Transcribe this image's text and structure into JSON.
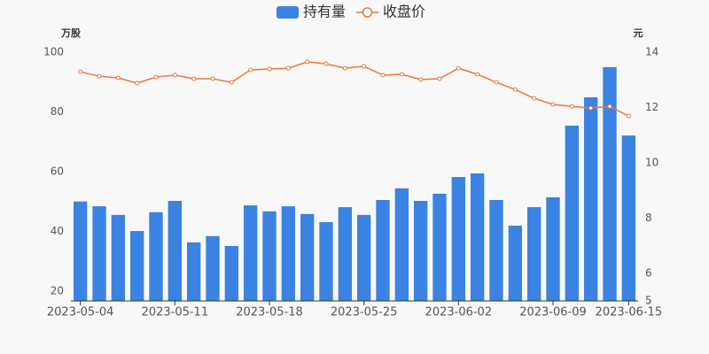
{
  "chart_data": {
    "type": "bar-line",
    "categories": [
      "2023-05-04",
      null,
      null,
      null,
      null,
      "2023-05-11",
      null,
      null,
      null,
      null,
      "2023-05-18",
      null,
      null,
      null,
      null,
      "2023-05-25",
      null,
      null,
      null,
      null,
      "2023-06-02",
      null,
      null,
      null,
      null,
      "2023-06-09",
      null,
      null,
      null,
      "2023-06-15"
    ],
    "series": [
      {
        "name": "持有量",
        "color": "#3a83e2",
        "kind": "bar",
        "axis": "y",
        "values": [
          50,
          48.4,
          45.5,
          40.1,
          46.4,
          50.2,
          36.3,
          38.4,
          35.1,
          48.7,
          46.7,
          48.4,
          45.8,
          43.1,
          48.1,
          45.5,
          50.5,
          54.4,
          50.2,
          52.6,
          58.2,
          59.4,
          50.5,
          41.9,
          48.1,
          51.4,
          75.4,
          84.9,
          95,
          72.1
        ]
      },
      {
        "name": "收盘价",
        "color": "#e8793a",
        "kind": "line",
        "axis": "y2",
        "values": [
          13.29,
          13.13,
          13.07,
          12.88,
          13.1,
          13.17,
          13.04,
          13.04,
          12.91,
          13.36,
          13.39,
          13.42,
          13.65,
          13.58,
          13.42,
          13.49,
          13.17,
          13.2,
          13.01,
          13.04,
          13.42,
          13.2,
          12.91,
          12.65,
          12.33,
          12.11,
          12.04,
          11.98,
          12.04,
          11.69
        ]
      }
    ],
    "ylabel": "万股",
    "y2label": "元",
    "ylim": [
      16.7,
      100
    ],
    "yticks": [
      20,
      40,
      60,
      80,
      100
    ],
    "y2lim": [
      5,
      14
    ],
    "y2ticks": [
      5,
      6,
      8,
      10,
      12,
      14
    ],
    "grid": false,
    "legend": "top"
  }
}
